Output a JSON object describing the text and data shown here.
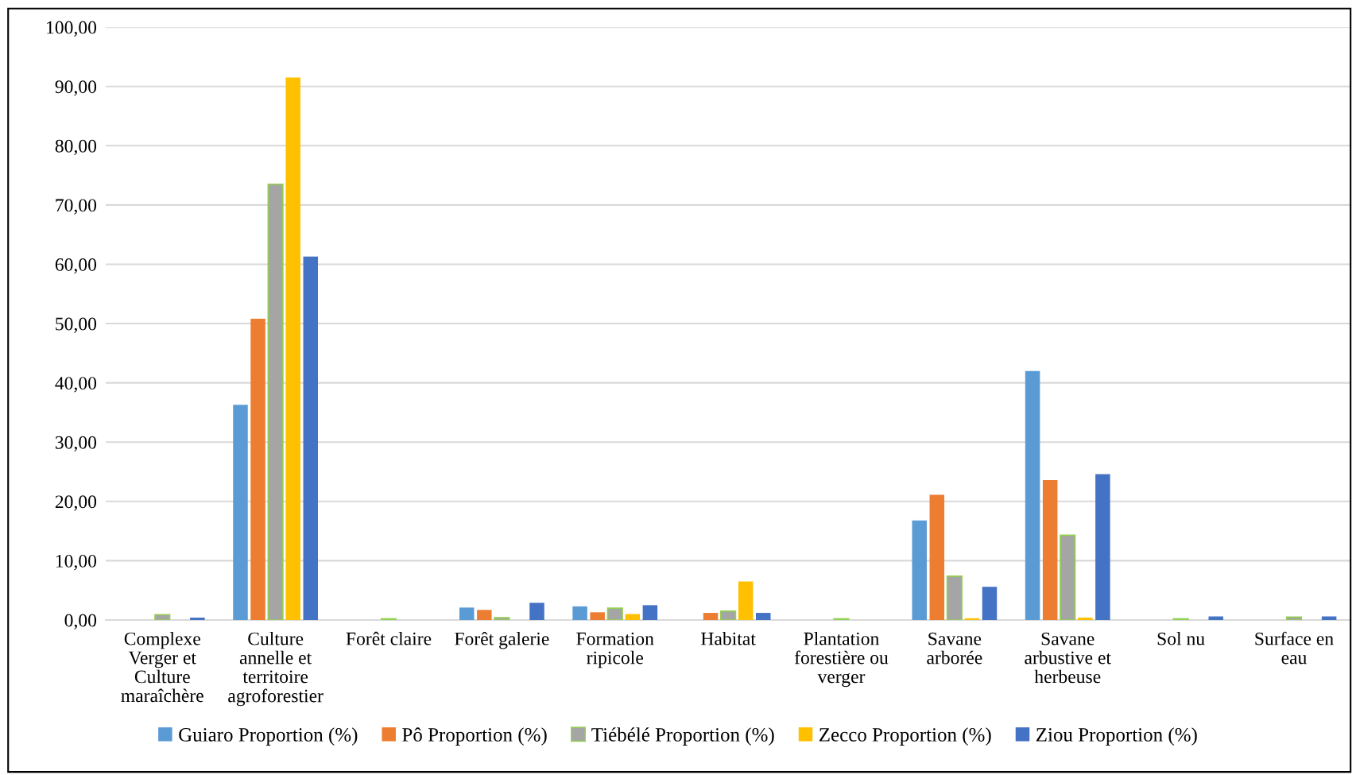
{
  "chart_data": {
    "type": "bar",
    "categories": [
      "Complexe Verger et Culture maraîchère",
      "Culture annelle et territoire agroforestier",
      "Forêt claire",
      "Forêt galerie",
      "Formation ripicole",
      "Habitat",
      "Plantation forestière ou verger",
      "Savane arborée",
      "Savane arbustive et herbeuse",
      "Sol nu",
      "Surface en eau"
    ],
    "series": [
      {
        "name": "Guiaro Proportion (%)",
        "color": "#5b9bd5",
        "values": [
          0,
          36.3,
          0,
          2.1,
          2.3,
          0,
          0,
          16.8,
          42.0,
          0,
          0
        ]
      },
      {
        "name": "Pô Proportion (%)",
        "color": "#ed7d31",
        "values": [
          0,
          50.8,
          0,
          1.7,
          1.3,
          1.2,
          0,
          21.1,
          23.6,
          0,
          0
        ]
      },
      {
        "name": "Tiébélé Proportion (%)",
        "color": "#a5a5a5",
        "values": [
          0.9,
          73.5,
          0.2,
          0.4,
          2.0,
          1.5,
          0.2,
          7.4,
          14.3,
          0.2,
          0.5
        ]
      },
      {
        "name": "Zecco Proportion (%)",
        "color": "#ffc000",
        "values": [
          0,
          91.5,
          0,
          0,
          1.0,
          6.5,
          0,
          0.3,
          0.4,
          0,
          0
        ]
      },
      {
        "name": "Ziou Proportion (%)",
        "color": "#4472c4",
        "values": [
          0.4,
          61.3,
          0,
          2.9,
          2.5,
          1.2,
          0,
          5.6,
          24.6,
          0.6,
          0.6
        ]
      }
    ],
    "ylim": [
      0,
      100
    ],
    "yticks": [
      {
        "value": 0,
        "label": "0,00"
      },
      {
        "value": 10,
        "label": "10,00"
      },
      {
        "value": 20,
        "label": "20,00"
      },
      {
        "value": 30,
        "label": "30,00"
      },
      {
        "value": 40,
        "label": "40,00"
      },
      {
        "value": 50,
        "label": "50,00"
      },
      {
        "value": 60,
        "label": "60,00"
      },
      {
        "value": 70,
        "label": "70,00"
      },
      {
        "value": 80,
        "label": "80,00"
      },
      {
        "value": 90,
        "label": "90,00"
      },
      {
        "value": 100,
        "label": "100,00"
      }
    ],
    "grid": "y",
    "legend": "bottom"
  }
}
